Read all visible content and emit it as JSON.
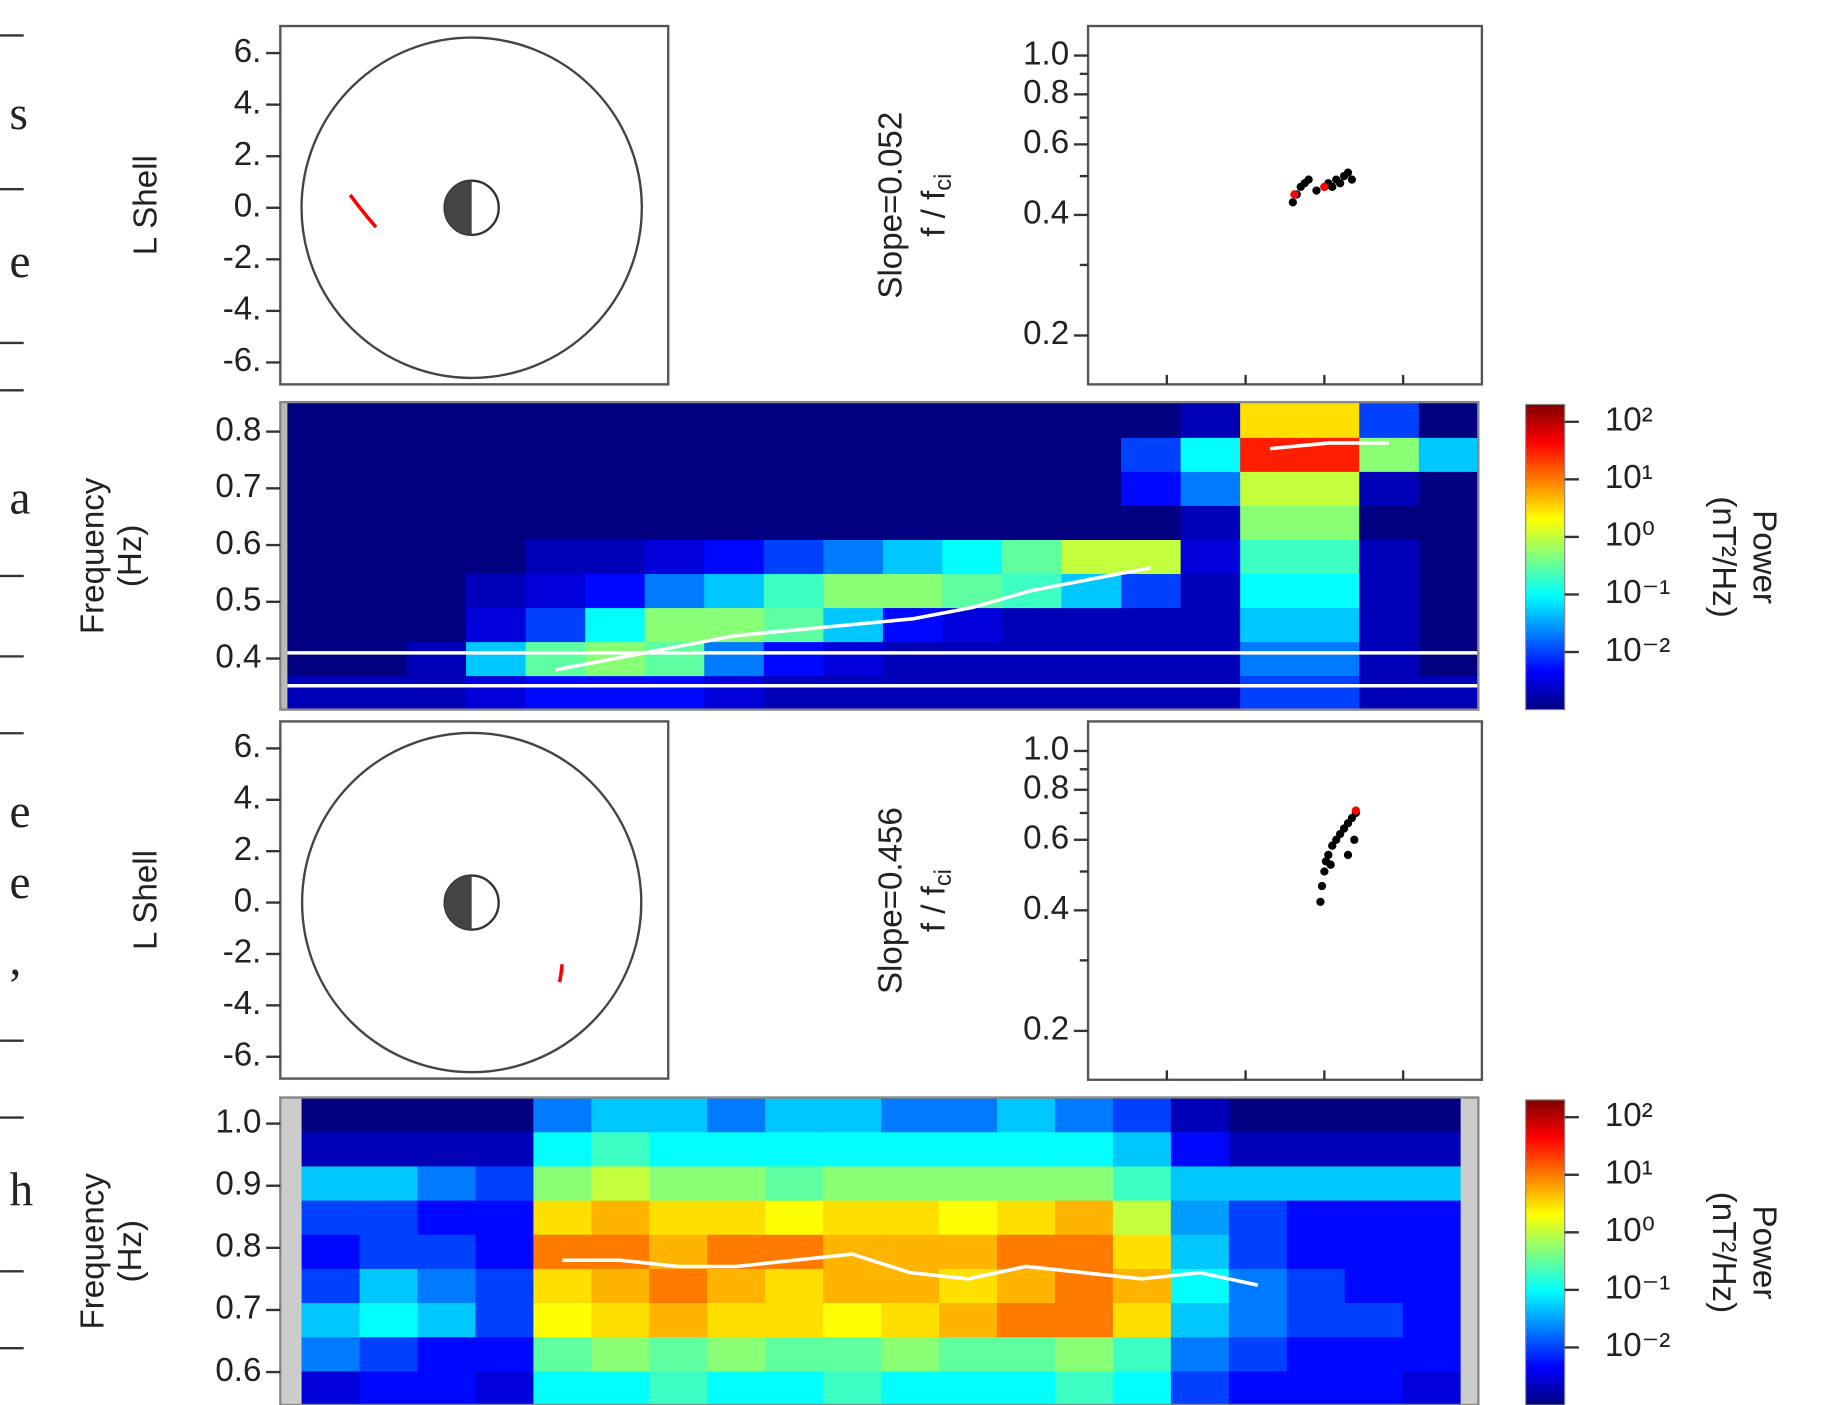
{
  "chart_data": [
    {
      "type": "orbit",
      "ylabel": "L Shell",
      "xlim": [
        -7.4,
        7.6
      ],
      "ylim": [
        -6.85,
        7.05
      ],
      "yticks": [
        {
          "value": 6,
          "label": "6."
        },
        {
          "value": 4,
          "label": "4."
        },
        {
          "value": 2,
          "label": "2."
        },
        {
          "value": 0,
          "label": "0."
        },
        {
          "value": -2,
          "label": "-2."
        },
        {
          "value": -4,
          "label": "-4."
        },
        {
          "value": -6,
          "label": "-6."
        }
      ],
      "track": {
        "color": "#ff0000",
        "x": [
          -4.7,
          -4.4,
          -4.0,
          -3.7
        ],
        "y": [
          0.5,
          0.1,
          -0.4,
          -0.75
        ]
      }
    },
    {
      "type": "scatter",
      "ylabel": "Slope=0.052",
      "ylabel2": {
        "main": "f / f",
        "sub": "ci"
      },
      "log_y": true,
      "xlim": [
        0,
        5
      ],
      "xticks": [
        1,
        2,
        3,
        4
      ],
      "ylim": [
        0.151,
        1.185
      ],
      "yticks": [
        {
          "value": 1,
          "label": "1.0"
        },
        0.8,
        0.6,
        0.4,
        0.2
      ],
      "yminorticks": [
        0.3,
        0.5,
        0.7,
        0.9
      ],
      "series": [
        {
          "color": "#000000",
          "x": [
            2.6,
            2.65,
            2.7,
            2.75,
            2.8,
            2.9,
            3.0,
            3.05,
            3.1,
            3.15,
            3.2,
            3.25,
            3.3,
            3.35
          ],
          "y": [
            0.43,
            0.45,
            0.47,
            0.48,
            0.49,
            0.46,
            0.47,
            0.48,
            0.47,
            0.49,
            0.48,
            0.5,
            0.51,
            0.49
          ]
        },
        {
          "color": "#ff0000",
          "x": [
            2.62,
            3.0
          ],
          "y": [
            0.45,
            0.47
          ]
        }
      ]
    },
    {
      "type": "spectrogram",
      "ylabel": [
        "Frequency",
        "(Hz)"
      ],
      "ylim": [
        0.31,
        0.852
      ],
      "yticks": [
        0.4,
        0.5,
        0.6,
        0.7,
        0.8
      ],
      "y_edges": [
        0.31,
        0.37,
        0.43,
        0.49,
        0.55,
        0.61,
        0.67,
        0.73,
        0.79,
        0.852
      ],
      "z": [
        [
          0.002,
          0.002,
          0.002,
          0.003,
          0.005,
          0.005,
          0.005,
          0.003,
          0.002,
          0.002,
          0.002,
          0.002,
          0.002,
          0.002,
          0.002,
          0.002,
          0.01,
          0.01,
          0.002,
          0.002
        ],
        [
          0.001,
          0.001,
          0.002,
          0.05,
          0.3,
          0.5,
          0.3,
          0.02,
          0.005,
          0.003,
          0.002,
          0.002,
          0.002,
          0.002,
          0.002,
          0.002,
          0.02,
          0.02,
          0.002,
          0.001
        ],
        [
          0.001,
          0.001,
          0.001,
          0.003,
          0.01,
          0.1,
          0.5,
          0.5,
          0.3,
          0.05,
          0.005,
          0.003,
          0.002,
          0.002,
          0.002,
          0.002,
          0.05,
          0.05,
          0.002,
          0.001
        ],
        [
          0.001,
          0.001,
          0.001,
          0.002,
          0.003,
          0.005,
          0.02,
          0.05,
          0.2,
          0.5,
          0.5,
          0.3,
          0.2,
          0.05,
          0.01,
          0.002,
          0.1,
          0.1,
          0.002,
          0.001
        ],
        [
          0.001,
          0.001,
          0.001,
          0.001,
          0.002,
          0.002,
          0.003,
          0.005,
          0.01,
          0.02,
          0.05,
          0.1,
          0.3,
          1,
          1,
          0.003,
          0.2,
          0.2,
          0.002,
          0.001
        ],
        [
          0.001,
          0.001,
          0.001,
          0.001,
          0.001,
          0.001,
          0.001,
          0.001,
          0.001,
          0.001,
          0.001,
          0.001,
          0.001,
          0.001,
          0.001,
          0.002,
          0.5,
          0.5,
          0.001,
          0.001
        ],
        [
          0.001,
          0.001,
          0.001,
          0.001,
          0.001,
          0.001,
          0.001,
          0.001,
          0.001,
          0.001,
          0.001,
          0.001,
          0.001,
          0.001,
          0.005,
          0.02,
          1,
          1,
          0.002,
          0.001
        ],
        [
          0.001,
          0.001,
          0.001,
          0.001,
          0.001,
          0.001,
          0.001,
          0.001,
          0.001,
          0.001,
          0.001,
          0.001,
          0.001,
          0.001,
          0.01,
          0.1,
          30,
          30,
          0.5,
          0.05
        ],
        [
          0.001,
          0.001,
          0.001,
          0.001,
          0.001,
          0.001,
          0.001,
          0.001,
          0.001,
          0.001,
          0.001,
          0.001,
          0.001,
          0.001,
          0.001,
          0.002,
          3,
          3,
          0.01,
          0.001
        ]
      ],
      "ridge": {
        "color": "#ffffff",
        "values": [
          null,
          null,
          null,
          null,
          0.38,
          0.4,
          0.42,
          0.44,
          0.45,
          0.46,
          0.47,
          0.49,
          0.52,
          0.54,
          0.56,
          null,
          0.77,
          0.78,
          0.78,
          null
        ]
      },
      "hlines": [
        0.41,
        0.352
      ],
      "colorbar": {
        "label": [
          "Power",
          "(nT²/Hz)"
        ],
        "lim": [
          0.001,
          200
        ],
        "ticks": [
          {
            "value": 100,
            "label": "10²"
          },
          {
            "value": 10,
            "label": "10¹"
          },
          {
            "value": 1,
            "label": "10⁰"
          },
          {
            "value": 0.1,
            "label": "10⁻¹"
          },
          {
            "value": 0.01,
            "label": "10⁻²"
          }
        ]
      }
    },
    {
      "type": "orbit",
      "ylabel": "L Shell",
      "xlim": [
        -7.4,
        7.6
      ],
      "ylim": [
        -6.85,
        7.05
      ],
      "yticks": [
        {
          "value": 6,
          "label": "6."
        },
        {
          "value": 4,
          "label": "4."
        },
        {
          "value": 2,
          "label": "2."
        },
        {
          "value": 0,
          "label": "0."
        },
        {
          "value": -2,
          "label": "-2."
        },
        {
          "value": -4,
          "label": "-4."
        },
        {
          "value": -6,
          "label": "-6."
        }
      ],
      "track": {
        "color": "#ff0000",
        "x": [
          3.5,
          3.45,
          3.4
        ],
        "y": [
          -2.4,
          -2.8,
          -3.1
        ]
      }
    },
    {
      "type": "scatter",
      "ylabel": "Slope=0.456",
      "ylabel2": {
        "main": "f / f",
        "sub": "ci"
      },
      "log_y": true,
      "xlim": [
        0,
        5
      ],
      "xticks": [
        1,
        2,
        3,
        4
      ],
      "ylim": [
        0.151,
        1.185
      ],
      "yticks": [
        {
          "value": 1,
          "label": "1.0"
        },
        0.8,
        0.6,
        0.4,
        0.2
      ],
      "yminorticks": [
        0.3,
        0.5,
        0.7,
        0.9
      ],
      "series": [
        {
          "color": "#000000",
          "x": [
            2.95,
            2.97,
            3.0,
            3.02,
            3.05,
            3.08,
            3.1,
            3.15,
            3.2,
            3.25,
            3.3,
            3.35,
            3.4,
            3.3,
            3.38
          ],
          "y": [
            0.42,
            0.46,
            0.5,
            0.53,
            0.55,
            0.52,
            0.58,
            0.6,
            0.62,
            0.64,
            0.66,
            0.68,
            0.7,
            0.55,
            0.6
          ]
        },
        {
          "color": "#ff0000",
          "x": [
            3.4
          ],
          "y": [
            0.71
          ]
        }
      ]
    },
    {
      "type": "spectrogram",
      "ylabel": [
        "Frequency",
        "(Hz)"
      ],
      "ylim": [
        0.547,
        1.042
      ],
      "yticks": [
        0.6,
        0.7,
        0.8,
        0.9,
        {
          "value": 1,
          "label": "1.0"
        }
      ],
      "y_edges": [
        0.547,
        0.602,
        0.657,
        0.712,
        0.767,
        0.822,
        0.877,
        0.932,
        0.987,
        1.042
      ],
      "z": [
        [
          0.003,
          0.005,
          0.005,
          0.003,
          0.1,
          0.1,
          0.2,
          0.1,
          0.1,
          0.2,
          0.1,
          0.1,
          0.1,
          0.2,
          0.1,
          0.01,
          0.005,
          0.005,
          0.005,
          0.003
        ],
        [
          0.02,
          0.01,
          0.005,
          0.005,
          0.3,
          0.5,
          0.3,
          0.5,
          0.3,
          0.3,
          0.5,
          0.3,
          0.3,
          0.5,
          0.2,
          0.02,
          0.01,
          0.005,
          0.005,
          0.005
        ],
        [
          0.05,
          0.1,
          0.05,
          0.01,
          2,
          3,
          5,
          3,
          3,
          2,
          3,
          5,
          10,
          10,
          3,
          0.05,
          0.02,
          0.01,
          0.01,
          0.005
        ],
        [
          0.01,
          0.05,
          0.02,
          0.01,
          3,
          5,
          10,
          5,
          3,
          5,
          5,
          3,
          5,
          10,
          5,
          0.1,
          0.02,
          0.01,
          0.005,
          0.005
        ],
        [
          0.005,
          0.01,
          0.01,
          0.005,
          10,
          10,
          5,
          10,
          10,
          5,
          5,
          5,
          10,
          10,
          3,
          0.05,
          0.01,
          0.005,
          0.005,
          0.005
        ],
        [
          0.01,
          0.01,
          0.005,
          0.005,
          3,
          5,
          3,
          3,
          2,
          3,
          3,
          2,
          3,
          5,
          1,
          0.03,
          0.01,
          0.005,
          0.005,
          0.005
        ],
        [
          0.05,
          0.05,
          0.02,
          0.01,
          0.5,
          1,
          0.5,
          0.5,
          0.3,
          0.5,
          0.5,
          0.5,
          0.5,
          0.5,
          0.2,
          0.05,
          0.05,
          0.05,
          0.05,
          0.05
        ],
        [
          0.002,
          0.002,
          0.002,
          0.002,
          0.1,
          0.2,
          0.1,
          0.1,
          0.1,
          0.1,
          0.1,
          0.1,
          0.1,
          0.1,
          0.05,
          0.005,
          0.002,
          0.002,
          0.002,
          0.002
        ],
        [
          0.001,
          0.001,
          0.001,
          0.001,
          0.02,
          0.05,
          0.05,
          0.02,
          0.05,
          0.05,
          0.02,
          0.02,
          0.05,
          0.02,
          0.01,
          0.002,
          0.001,
          0.001,
          0.001,
          0.001
        ]
      ],
      "ridge": {
        "color": "#ffffff",
        "values": [
          null,
          null,
          null,
          null,
          0.78,
          0.78,
          0.77,
          0.77,
          0.78,
          0.79,
          0.76,
          0.75,
          0.77,
          0.76,
          0.75,
          0.76,
          0.74,
          null,
          null,
          null
        ]
      },
      "colorbar": {
        "label": [
          "Power",
          "(nT²/Hz)"
        ],
        "lim": [
          0.001,
          200
        ],
        "ticks": [
          {
            "value": 100,
            "label": "10²"
          },
          {
            "value": 10,
            "label": "10¹"
          },
          {
            "value": 1,
            "label": "10⁰"
          },
          {
            "value": 0.1,
            "label": "10⁻¹"
          },
          {
            "value": 0.01,
            "label": "10⁻²"
          }
        ]
      }
    }
  ],
  "margin_text": [
    "s",
    "e",
    "a",
    "e",
    "e",
    ",",
    "h"
  ]
}
